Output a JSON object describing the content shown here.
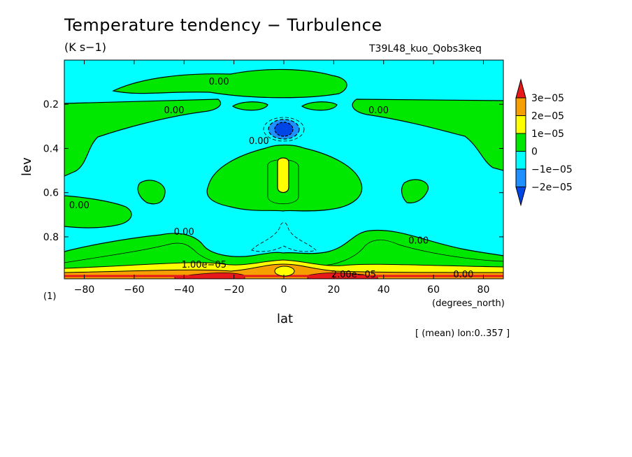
{
  "title": "Temperature tendency − Turbulence",
  "units": "(K s−1)",
  "run_label": "T39L48_kuo_Qobs3keq",
  "x_axis_label": "lat",
  "y_axis_label": "lev",
  "x_unit_label": "(degrees_north)",
  "y_unit_label": "(1)",
  "footnote": "[ (mean) lon:0..357 ]",
  "chart_data": {
    "type": "heatmap",
    "title": "Temperature tendency − Turbulence",
    "xlabel": "lat",
    "ylabel": "lev",
    "xlim": [
      -88,
      88
    ],
    "ylim": [
      0.0,
      0.99
    ],
    "y_reversed": true,
    "x_ticks": [
      -80,
      -60,
      -40,
      -20,
      0,
      20,
      40,
      60,
      80
    ],
    "x_tick_labels": [
      "−80",
      "−60",
      "−40",
      "−20",
      "0",
      "20",
      "40",
      "60",
      "80"
    ],
    "y_ticks": [
      0.2,
      0.4,
      0.6,
      0.8
    ],
    "y_tick_labels": [
      "0.2",
      "0.4",
      "0.6",
      "0.8"
    ],
    "colorbar": {
      "levels": [
        "3e−05",
        "2e−05",
        "1e−05",
        "0",
        "−1e−05",
        "−2e−05"
      ],
      "colors": [
        "#e8191a",
        "#f5a000",
        "#ffff00",
        "#00e700",
        "#00ffff",
        "#1e90ff",
        "#0046e6"
      ]
    },
    "contour_labels": [
      {
        "text": "0.00",
        "lat": -26,
        "lev": 0.11
      },
      {
        "text": "0.00",
        "lat": -44,
        "lev": 0.24
      },
      {
        "text": "0.00",
        "lat": 38,
        "lev": 0.24
      },
      {
        "text": "0.00",
        "lat": -10,
        "lev": 0.38
      },
      {
        "text": "0.00",
        "lat": -82,
        "lev": 0.67
      },
      {
        "text": "0.00",
        "lat": -40,
        "lev": 0.79
      },
      {
        "text": "0.00",
        "lat": 54,
        "lev": 0.83
      },
      {
        "text": "1.00e−05",
        "lat": -32,
        "lev": 0.94
      },
      {
        "text": "2.00e−05",
        "lat": 28,
        "lev": 0.99
      },
      {
        "text": "0.00",
        "lat": 72,
        "lev": 0.99
      }
    ]
  }
}
